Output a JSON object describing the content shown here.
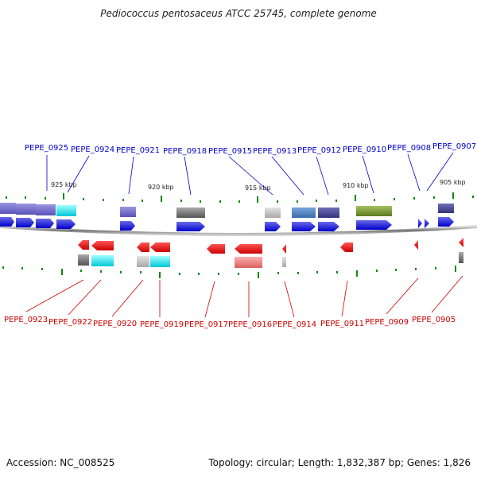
{
  "title": "Pediococcus pentosaceus ATCC 25745, complete genome",
  "accession_text": "Accession: NC_008525",
  "summary_text": "Topology: circular; Length: 1,832,387 bp; Genes: 1,826",
  "scale_labels": [
    "925 kbp",
    "920 kbp",
    "915 kbp",
    "910 kbp",
    "905 kbp"
  ],
  "top_gene_labels": [
    "PEPE_0925",
    "PEPE_0924",
    "PEPE_0921",
    "PEPE_0918",
    "PEPE_0915",
    "PEPE_0913",
    "PEPE_0912",
    "PEPE_0910",
    "PEPE_0908",
    "PEPE_0907"
  ],
  "bottom_gene_labels": [
    "PEPE_0923",
    "PEPE_0922",
    "PEPE_0920",
    "PEPE_0919",
    "PEPE_0917",
    "PEPE_0916",
    "PEPE_0914",
    "PEPE_0911",
    "PEPE_0909",
    "PEPE_0905"
  ],
  "colors": {
    "forward_label": "#0000cc",
    "reverse_label": "#cc0000",
    "forward_arrow": "#0000ee",
    "reverse_arrow": "#ee0000",
    "tick": "#118811",
    "backbone": "#888888"
  }
}
